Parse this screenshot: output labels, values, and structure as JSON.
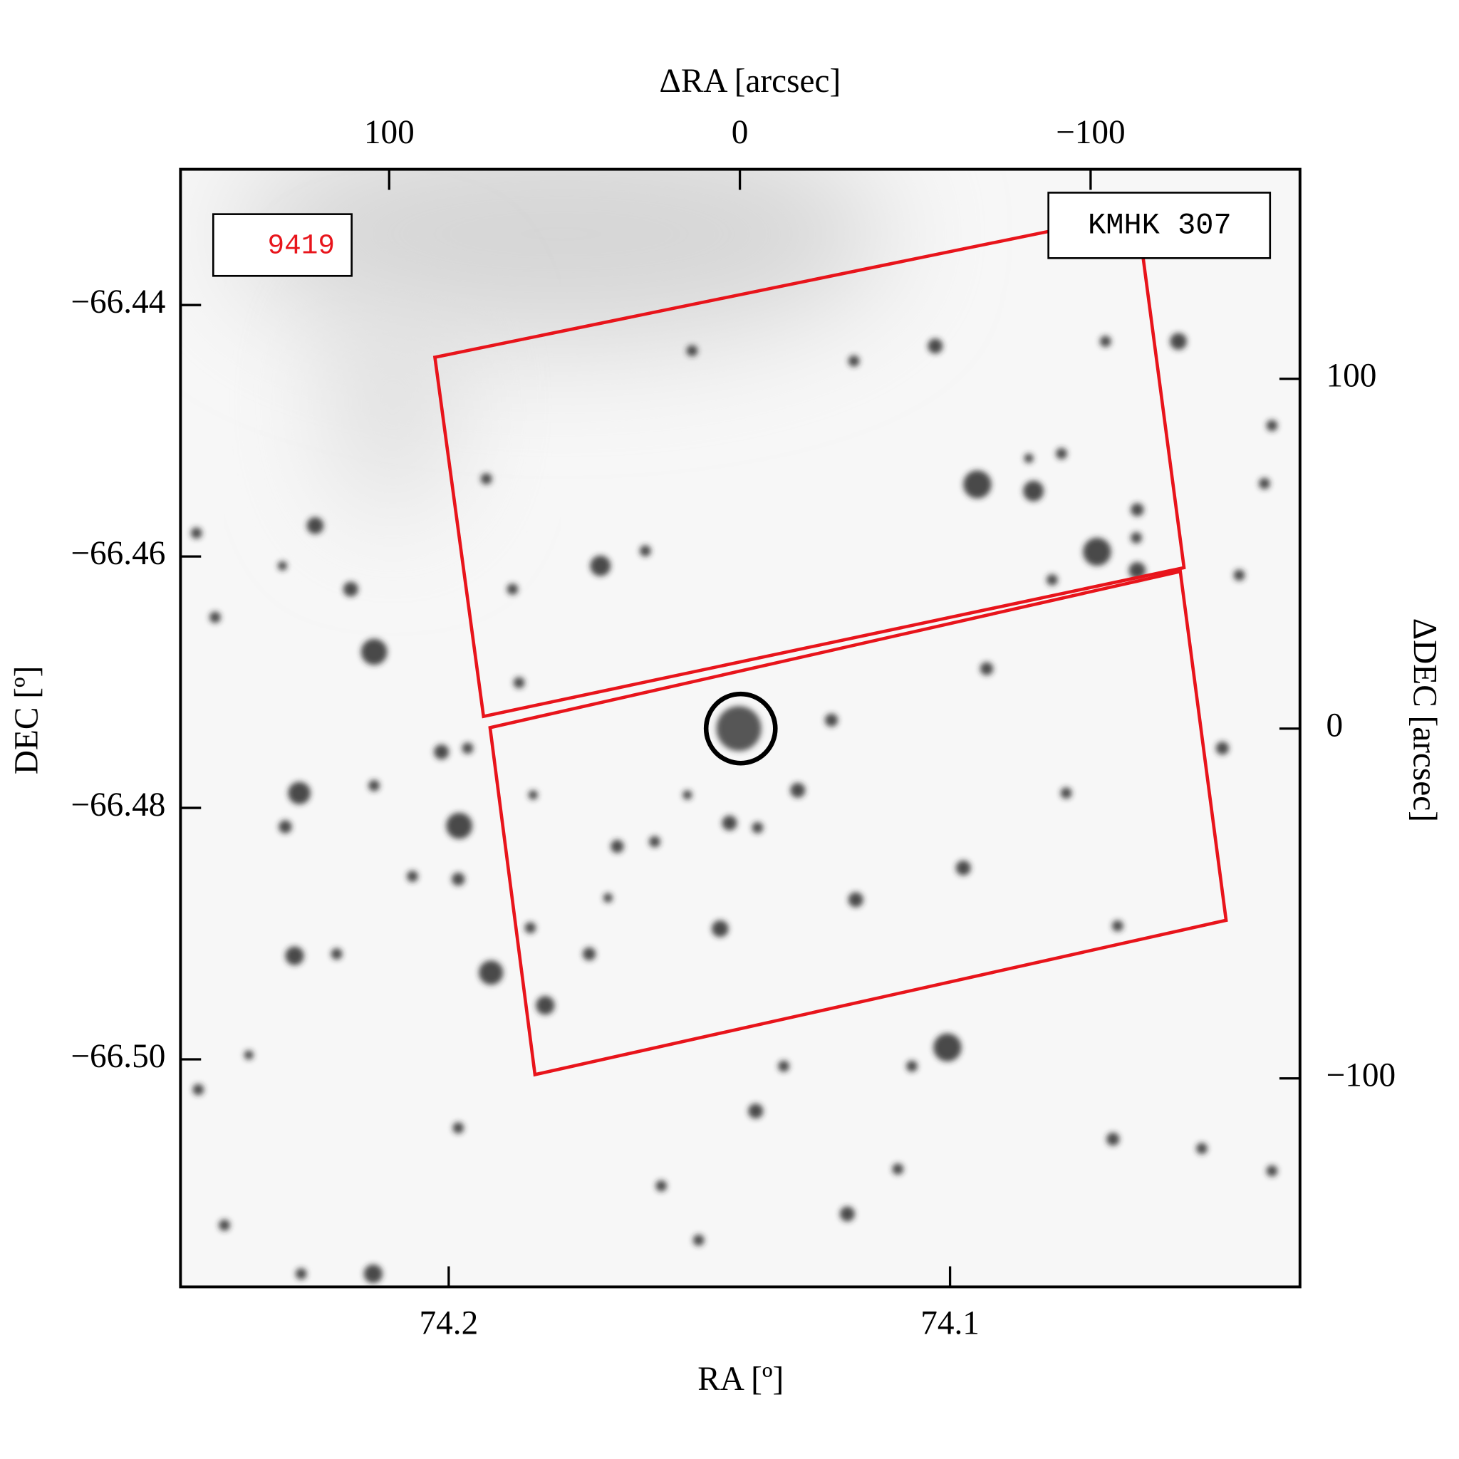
{
  "chart_data": {
    "type": "image",
    "xlabel": "RA [º]",
    "ylabel": "DEC [º]",
    "x2label": "ΔRA [arcsec]",
    "y2label": "ΔDEC [arcsec]",
    "xlim": [
      74.2535,
      74.0302
    ],
    "xticks": [
      74.2,
      74.1
    ],
    "ylim": [
      -66.5181,
      -66.4292
    ],
    "yticks": [
      {
        "value": -66.44,
        "label": "−66.44"
      },
      {
        "value": -66.46,
        "label": "−66.46"
      },
      {
        "value": -66.48,
        "label": "−66.48"
      },
      {
        "value": -66.5,
        "label": "−66.50"
      }
    ],
    "x2lim": [
      159.5,
      -159.7
    ],
    "x2ticks": [
      100,
      0,
      {
        "value": -100,
        "label": "−100"
      }
    ],
    "y2lim": [
      -159.6,
      159.9
    ],
    "y2ticks": [
      100,
      0,
      {
        "value": -100,
        "label": "−100"
      }
    ],
    "annotations": [
      "9419",
      "KMHK 307"
    ]
  }
}
